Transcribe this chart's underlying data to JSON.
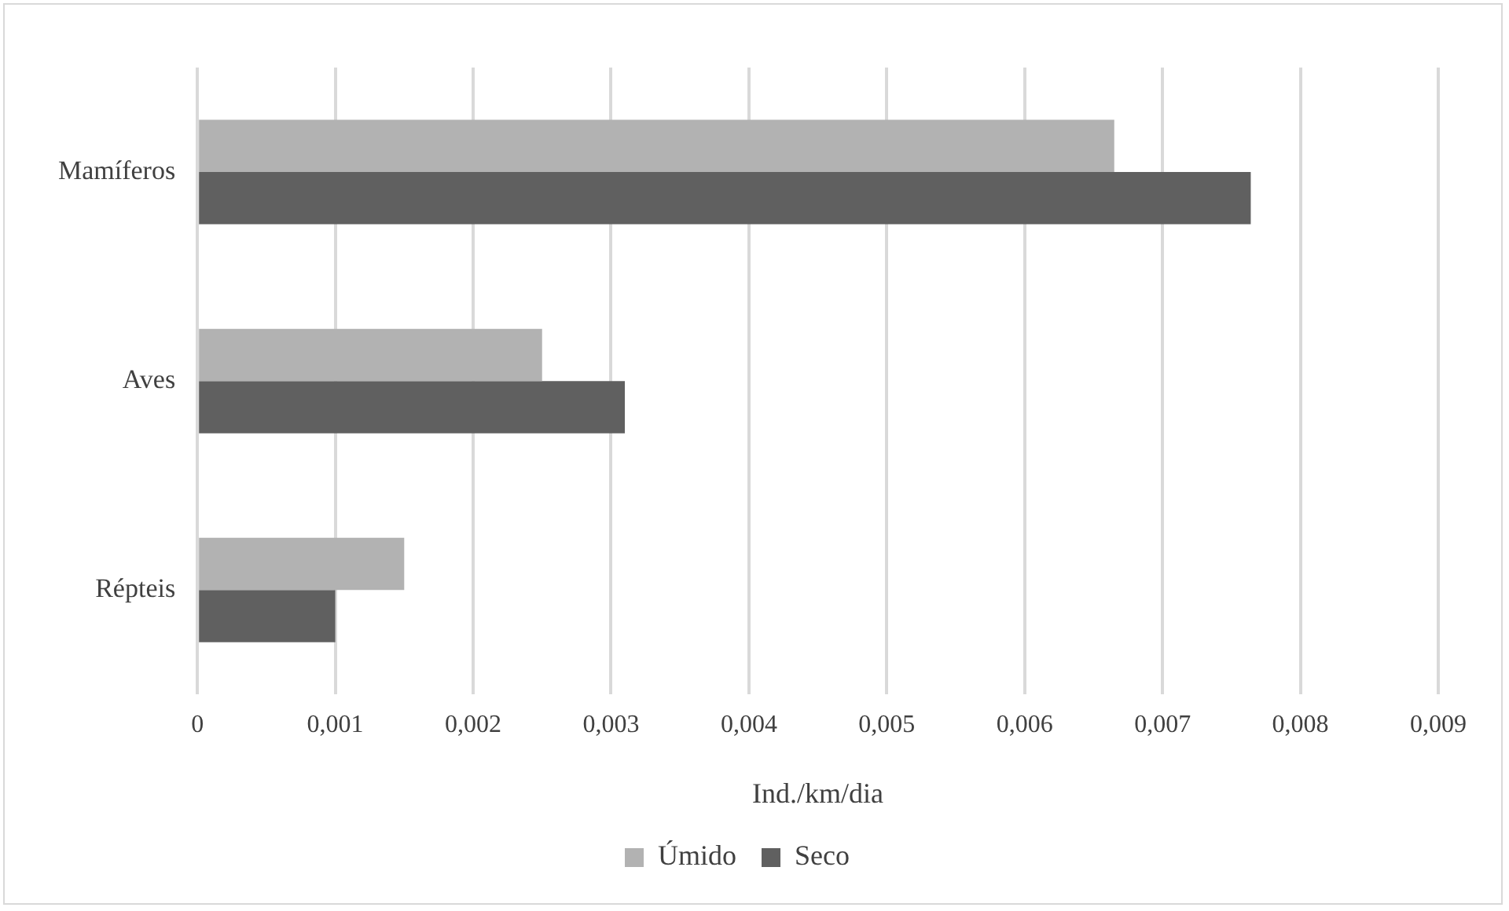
{
  "chart_data": {
    "type": "bar",
    "orientation": "horizontal",
    "xlabel": "Ind./km/dia",
    "categories": [
      "Mamíferos",
      "Aves",
      "Répteis"
    ],
    "series": [
      {
        "name": "Úmido",
        "color": "#b2b2b2",
        "values": [
          0.00665,
          0.0025,
          0.0015
        ]
      },
      {
        "name": "Seco",
        "color": "#606060",
        "values": [
          0.00764,
          0.0031,
          0.001
        ]
      }
    ],
    "xlim": [
      0,
      0.009
    ],
    "xticks": [
      0,
      {
        "value": 0.001,
        "label": "0,001"
      },
      {
        "value": 0.002,
        "label": "0,002"
      },
      {
        "value": 0.003,
        "label": "0,003"
      },
      {
        "value": 0.004,
        "label": "0,004"
      },
      {
        "value": 0.005,
        "label": "0,005"
      },
      {
        "value": 0.006,
        "label": "0,006"
      },
      {
        "value": 0.007,
        "label": "0,007"
      },
      {
        "value": 0.008,
        "label": "0,008"
      },
      {
        "value": 0.009,
        "label": "0,009"
      }
    ],
    "grid": "x",
    "legend": "bottom"
  }
}
